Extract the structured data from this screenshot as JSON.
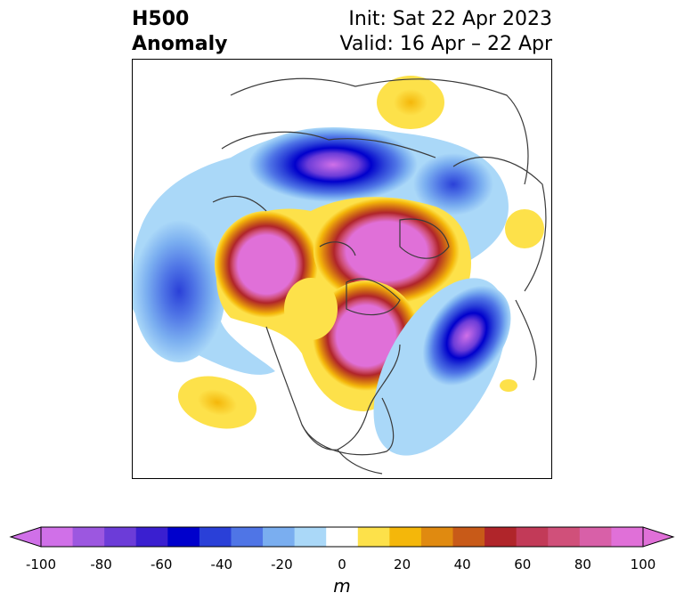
{
  "header": {
    "title_left_line1": "H500",
    "title_left_line2": "Anomaly",
    "title_right_line1": "Init: Sat 22 Apr 2023",
    "title_right_line2": "Valid: 16 Apr – 22 Apr"
  },
  "colorbar": {
    "unit_label": "m",
    "ticks": [
      "-100",
      "-80",
      "-60",
      "-40",
      "-20",
      "0",
      "20",
      "40",
      "60",
      "80",
      "100"
    ],
    "colors": [
      "#d070e8",
      "#9c57e0",
      "#6c3cd8",
      "#3a1fd0",
      "#0000cc",
      "#2a40d8",
      "#4f75e6",
      "#7aaef0",
      "#aad8f8",
      "#ffffff",
      "#fde14a",
      "#f4b70a",
      "#e08a10",
      "#c85a18",
      "#b0252a",
      "#c23a58",
      "#d0507a",
      "#d860a8",
      "#e070d8"
    ]
  }
}
